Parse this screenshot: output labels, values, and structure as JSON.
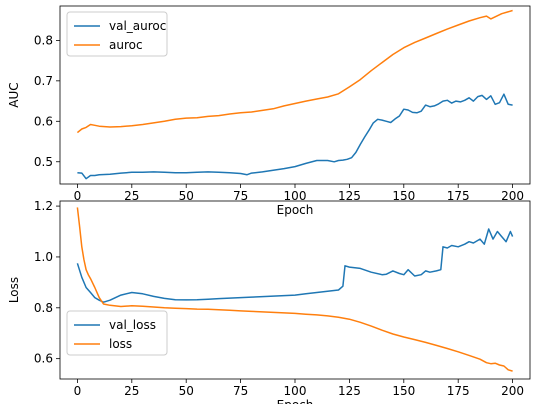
{
  "chart_data": [
    {
      "type": "line",
      "xlabel": "Epoch",
      "ylabel": "AUC",
      "xlim": [
        -8,
        208
      ],
      "ylim": [
        0.445,
        0.885
      ],
      "xticks": [
        0,
        25,
        50,
        75,
        100,
        125,
        150,
        175,
        200
      ],
      "yticks": [
        0.5,
        0.6,
        0.7,
        0.8
      ],
      "ytick_labels": [
        "0.5",
        "0.6",
        "0.7",
        "0.8"
      ],
      "legend_position": "upper-left",
      "series": [
        {
          "name": "val_auroc",
          "color": "#1f77b4",
          "x": [
            0,
            2,
            4,
            6,
            8,
            10,
            15,
            20,
            25,
            30,
            35,
            40,
            45,
            50,
            55,
            60,
            65,
            70,
            75,
            78,
            80,
            85,
            90,
            95,
            100,
            105,
            110,
            115,
            118,
            120,
            122,
            124,
            126,
            128,
            130,
            132,
            134,
            136,
            138,
            140,
            142,
            144,
            146,
            148,
            150,
            152,
            154,
            156,
            158,
            160,
            162,
            164,
            166,
            168,
            170,
            172,
            174,
            176,
            178,
            180,
            182,
            184,
            186,
            188,
            190,
            192,
            194,
            196,
            198,
            200
          ],
          "y": [
            0.473,
            0.472,
            0.458,
            0.466,
            0.466,
            0.468,
            0.469,
            0.472,
            0.474,
            0.474,
            0.475,
            0.474,
            0.473,
            0.473,
            0.474,
            0.475,
            0.474,
            0.473,
            0.471,
            0.468,
            0.472,
            0.475,
            0.479,
            0.483,
            0.488,
            0.496,
            0.503,
            0.503,
            0.5,
            0.503,
            0.504,
            0.506,
            0.51,
            0.523,
            0.543,
            0.561,
            0.578,
            0.596,
            0.605,
            0.603,
            0.6,
            0.597,
            0.606,
            0.613,
            0.63,
            0.628,
            0.622,
            0.621,
            0.625,
            0.64,
            0.636,
            0.638,
            0.643,
            0.65,
            0.652,
            0.645,
            0.65,
            0.648,
            0.652,
            0.658,
            0.65,
            0.661,
            0.664,
            0.654,
            0.663,
            0.642,
            0.646,
            0.667,
            0.642,
            0.64
          ]
        },
        {
          "name": "auroc",
          "color": "#ff7f0e",
          "x": [
            0,
            2,
            4,
            6,
            8,
            10,
            15,
            20,
            25,
            30,
            35,
            40,
            45,
            50,
            55,
            60,
            65,
            70,
            75,
            80,
            85,
            90,
            95,
            100,
            105,
            110,
            115,
            120,
            125,
            130,
            135,
            140,
            145,
            150,
            155,
            160,
            165,
            170,
            175,
            180,
            185,
            188,
            190,
            195,
            200
          ],
          "y": [
            0.572,
            0.581,
            0.585,
            0.592,
            0.59,
            0.588,
            0.586,
            0.587,
            0.589,
            0.592,
            0.596,
            0.6,
            0.605,
            0.608,
            0.609,
            0.612,
            0.614,
            0.618,
            0.621,
            0.623,
            0.627,
            0.631,
            0.638,
            0.644,
            0.65,
            0.655,
            0.66,
            0.668,
            0.685,
            0.703,
            0.725,
            0.745,
            0.765,
            0.782,
            0.795,
            0.806,
            0.817,
            0.828,
            0.838,
            0.848,
            0.856,
            0.86,
            0.853,
            0.866,
            0.874
          ]
        }
      ]
    },
    {
      "type": "line",
      "xlabel": "Epoch",
      "ylabel": "Loss",
      "xlim": [
        -8,
        208
      ],
      "ylim": [
        0.52,
        1.22
      ],
      "xticks": [
        0,
        25,
        50,
        75,
        100,
        125,
        150,
        175,
        200
      ],
      "yticks": [
        0.6,
        0.8,
        1.0,
        1.2
      ],
      "ytick_labels": [
        "0.6",
        "0.8",
        "1.0",
        "1.2"
      ],
      "legend_position": "lower-left",
      "series": [
        {
          "name": "val_loss",
          "color": "#1f77b4",
          "x": [
            0,
            2,
            4,
            6,
            8,
            10,
            12,
            15,
            20,
            25,
            30,
            35,
            40,
            45,
            50,
            55,
            60,
            65,
            70,
            75,
            80,
            85,
            90,
            95,
            100,
            105,
            110,
            115,
            120,
            122,
            123,
            125,
            130,
            135,
            140,
            142,
            145,
            148,
            150,
            152,
            155,
            158,
            160,
            162,
            165,
            167,
            168,
            170,
            172,
            175,
            178,
            180,
            182,
            185,
            187,
            189,
            191,
            193,
            195,
            197,
            199,
            200
          ],
          "y": [
            0.975,
            0.92,
            0.88,
            0.86,
            0.84,
            0.83,
            0.822,
            0.83,
            0.85,
            0.86,
            0.855,
            0.845,
            0.837,
            0.832,
            0.831,
            0.832,
            0.834,
            0.836,
            0.838,
            0.84,
            0.842,
            0.844,
            0.846,
            0.848,
            0.85,
            0.855,
            0.86,
            0.865,
            0.87,
            0.885,
            0.965,
            0.96,
            0.955,
            0.94,
            0.93,
            0.932,
            0.945,
            0.935,
            0.93,
            0.95,
            0.925,
            0.93,
            0.945,
            0.94,
            0.945,
            0.95,
            1.04,
            1.035,
            1.045,
            1.04,
            1.05,
            1.06,
            1.055,
            1.07,
            1.05,
            1.11,
            1.07,
            1.1,
            1.08,
            1.06,
            1.1,
            1.08
          ]
        },
        {
          "name": "loss",
          "color": "#ff7f0e",
          "x": [
            0,
            1,
            2,
            3,
            4,
            5,
            6,
            8,
            10,
            12,
            15,
            20,
            25,
            30,
            35,
            40,
            45,
            50,
            55,
            60,
            65,
            70,
            75,
            80,
            85,
            90,
            95,
            100,
            105,
            110,
            115,
            120,
            125,
            130,
            135,
            140,
            145,
            150,
            155,
            160,
            165,
            170,
            175,
            180,
            185,
            188,
            190,
            192,
            194,
            196,
            198,
            200
          ],
          "y": [
            1.195,
            1.12,
            1.04,
            0.99,
            0.95,
            0.93,
            0.915,
            0.88,
            0.84,
            0.815,
            0.81,
            0.805,
            0.808,
            0.806,
            0.803,
            0.8,
            0.798,
            0.797,
            0.795,
            0.794,
            0.792,
            0.79,
            0.788,
            0.786,
            0.784,
            0.782,
            0.78,
            0.778,
            0.775,
            0.772,
            0.768,
            0.763,
            0.755,
            0.743,
            0.728,
            0.712,
            0.697,
            0.685,
            0.675,
            0.664,
            0.652,
            0.64,
            0.627,
            0.613,
            0.598,
            0.584,
            0.58,
            0.582,
            0.575,
            0.571,
            0.556,
            0.551
          ]
        }
      ]
    }
  ]
}
